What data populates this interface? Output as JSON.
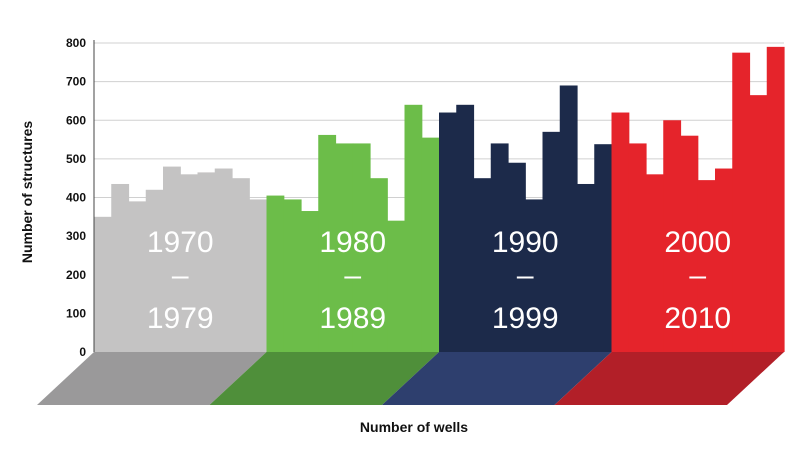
{
  "chart_data": {
    "type": "bar",
    "title": "",
    "xlabel": "Number of wells",
    "ylabel": "Number of structures",
    "ylim": [
      0,
      800
    ],
    "yticks": [
      0,
      100,
      200,
      300,
      400,
      500,
      600,
      700,
      800
    ],
    "grid": true,
    "series": [
      {
        "range_start": "1970",
        "dash": "–",
        "range_end": "1979",
        "color": "#c4c3c3",
        "base_color": "#9a999a",
        "values": [
          350,
          435,
          390,
          420,
          480,
          460,
          465,
          475,
          450,
          395
        ]
      },
      {
        "range_start": "1980",
        "dash": "–",
        "range_end": "1989",
        "color": "#6cbd49",
        "base_color": "#4f8f3a",
        "values": [
          405,
          395,
          365,
          562,
          540,
          540,
          450,
          340,
          640,
          555
        ]
      },
      {
        "range_start": "1990",
        "dash": "–",
        "range_end": "1999",
        "color": "#1c2a4a",
        "base_color": "#2e3f6e",
        "values": [
          620,
          640,
          450,
          540,
          490,
          395,
          570,
          690,
          435,
          538
        ]
      },
      {
        "range_start": "2000",
        "dash": "–",
        "range_end": "2010",
        "color": "#e5242b",
        "base_color": "#b21f28",
        "values": [
          620,
          540,
          460,
          600,
          560,
          445,
          475,
          775,
          665,
          790
        ]
      }
    ]
  }
}
